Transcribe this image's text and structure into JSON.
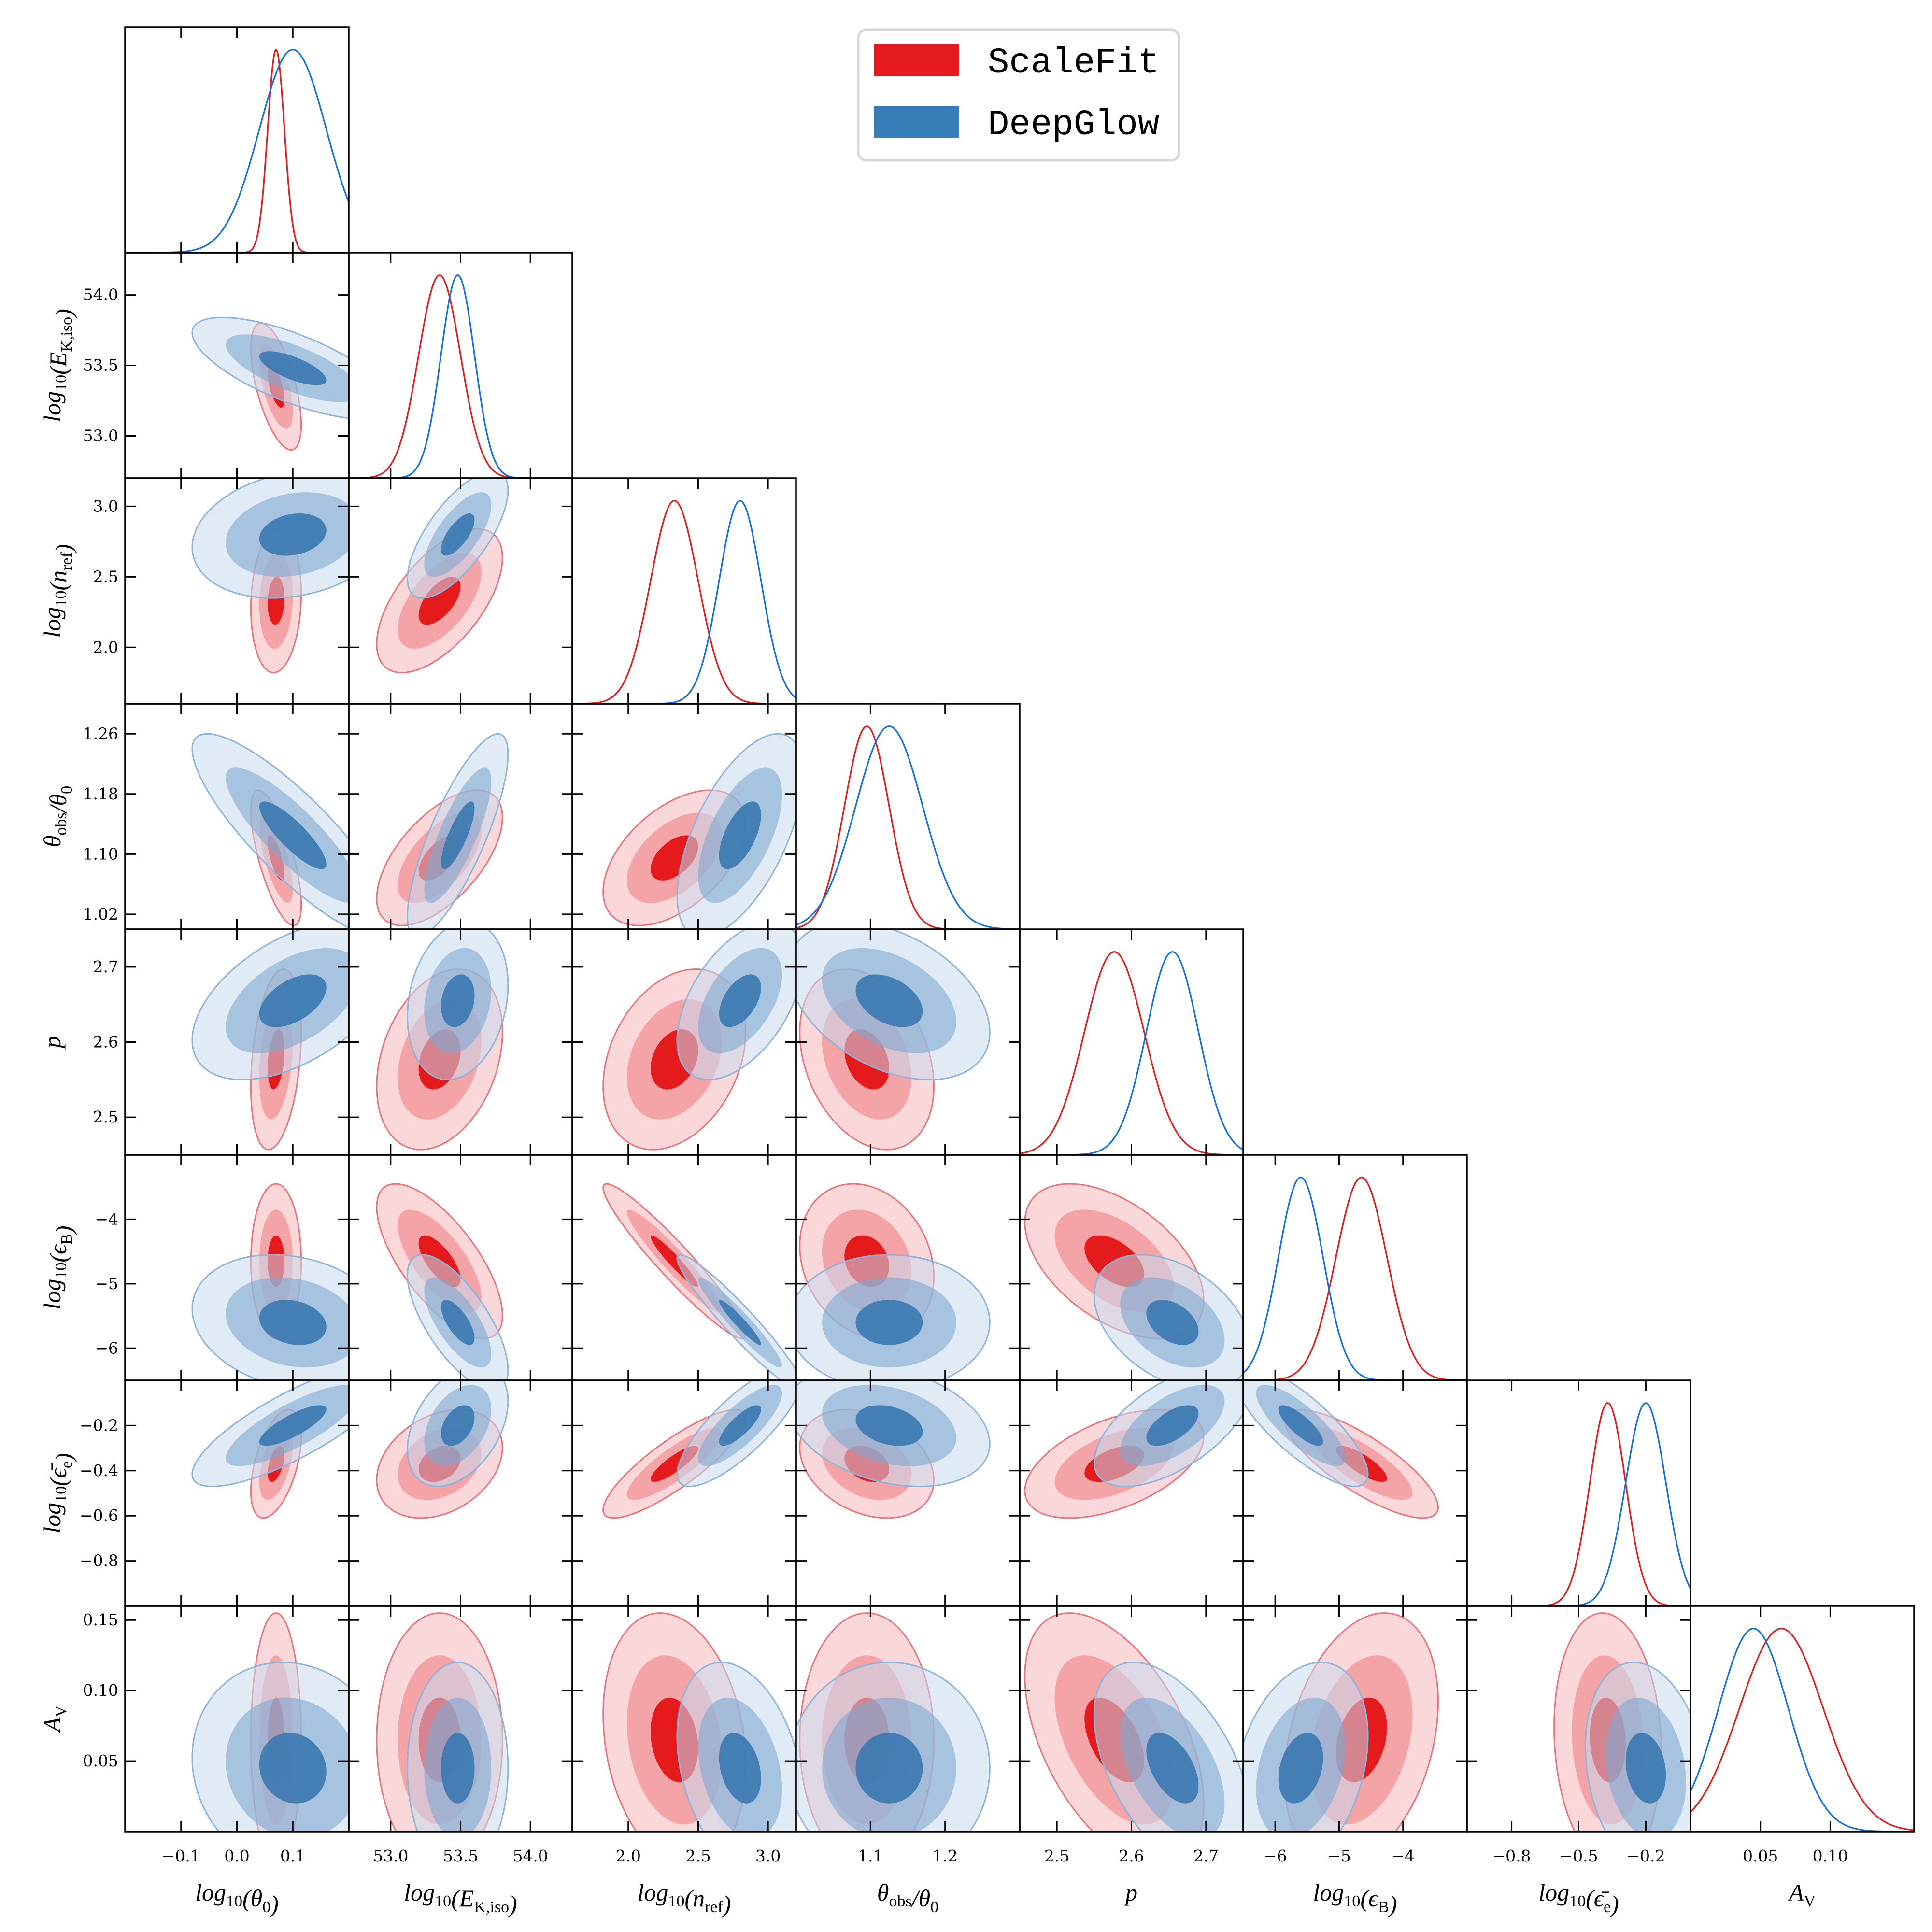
{
  "chart_data": {
    "type": "corner",
    "legend": {
      "placement": "top-center",
      "entries": [
        {
          "name": "ScaleFit",
          "color": "#e41a1c"
        },
        {
          "name": "DeepGlow",
          "color": "#377eb8"
        }
      ]
    },
    "parameters": [
      {
        "label": "log_{10}(θ_{0})",
        "range": [
          -0.2,
          0.2
        ],
        "ticks": [
          -0.1,
          0.0,
          0.1
        ],
        "tick_labels": [
          "−0.1",
          "0.0",
          "0.1"
        ]
      },
      {
        "label": "log_{10}(E_{K,iso})",
        "range": [
          52.7,
          54.3
        ],
        "ticks": [
          53.0,
          53.5,
          54.0
        ],
        "tick_labels": [
          "53.0",
          "53.5",
          "54.0"
        ]
      },
      {
        "label": "log_{10}(n_{ref})",
        "range": [
          1.6,
          3.2
        ],
        "ticks": [
          2.0,
          2.5,
          3.0
        ],
        "tick_labels": [
          "2.0",
          "2.5",
          "3.0"
        ]
      },
      {
        "label": "θ_{obs}/θ_{0}",
        "range": [
          1.0,
          1.3
        ],
        "ticks": [
          1.1,
          1.2
        ],
        "tick_labels": [
          "1.1",
          "1.2"
        ],
        "y_ticks": [
          1.02,
          1.1,
          1.18,
          1.26
        ],
        "y_tick_labels": [
          "1.02",
          "1.10",
          "1.18",
          "1.26"
        ]
      },
      {
        "label": "p",
        "range": [
          2.45,
          2.75
        ],
        "ticks": [
          2.5,
          2.6,
          2.7
        ],
        "tick_labels": [
          "2.5",
          "2.6",
          "2.7"
        ]
      },
      {
        "label": "log_{10}(ϵ_{B})",
        "range": [
          -6.5,
          -3.0
        ],
        "ticks": [
          -6,
          -5,
          -4
        ],
        "tick_labels": [
          "−6",
          "−5",
          "−4"
        ]
      },
      {
        "label": "log_{10}(ϵ̄_{e})",
        "range": [
          -1.0,
          0.0
        ],
        "ticks": [
          -0.8,
          -0.5,
          -0.2
        ],
        "tick_labels": [
          "−0.8",
          "−0.5",
          "−0.2"
        ],
        "y_ticks": [
          -0.8,
          -0.6,
          -0.4,
          -0.2
        ],
        "y_tick_labels": [
          "−0.8",
          "−0.6",
          "−0.4",
          "−0.2"
        ]
      },
      {
        "label": "A_{V}",
        "range": [
          0.0,
          0.16
        ],
        "ticks": [
          0.05,
          0.1
        ],
        "tick_labels": [
          "0.05",
          "0.10"
        ],
        "y_ticks": [
          0.05,
          0.1,
          0.15
        ],
        "y_tick_labels": [
          "0.05",
          "0.10",
          "0.15"
        ]
      }
    ],
    "series": [
      {
        "name": "ScaleFit",
        "line_color": "#e41a1c",
        "fill_colors": [
          "#e41a1c",
          "#f4a3a6",
          "#fad8da"
        ],
        "edge_color": "#e8747a",
        "mean": [
          0.07,
          53.35,
          2.33,
          1.095,
          2.577,
          -4.65,
          -0.37,
          0.065
        ],
        "sigma": [
          0.015,
          0.15,
          0.17,
          0.03,
          0.04,
          0.4,
          0.08,
          0.03
        ],
        "correlation": [
          [
            1,
            -0.6,
            0.1,
            -0.7,
            0.3,
            0.0,
            0.5,
            0.0
          ],
          [
            -0.6,
            1,
            0.6,
            0.6,
            0.3,
            -0.7,
            0.3,
            0.0
          ],
          [
            0.1,
            0.6,
            1,
            0.5,
            0.3,
            -0.95,
            0.85,
            -0.2
          ],
          [
            -0.7,
            0.6,
            0.5,
            1,
            -0.3,
            -0.2,
            -0.3,
            0.0
          ],
          [
            0.3,
            0.3,
            0.3,
            -0.3,
            1,
            -0.5,
            0.5,
            -0.5
          ],
          [
            0.0,
            -0.7,
            -0.95,
            -0.2,
            -0.5,
            1,
            -0.8,
            0.3
          ],
          [
            0.5,
            0.3,
            0.85,
            -0.3,
            0.5,
            -0.8,
            1,
            -0.1
          ],
          [
            0.0,
            0.0,
            -0.2,
            0.0,
            -0.5,
            0.3,
            -0.1,
            1
          ]
        ]
      },
      {
        "name": "DeepGlow",
        "line_color": "#1170e0",
        "fill_colors": [
          "#3a78b0",
          "#7fa8d0",
          "#c9dbee"
        ],
        "edge_color": "#8fb4d8",
        "mean": [
          0.1,
          53.48,
          2.8,
          1.125,
          2.655,
          -5.6,
          -0.2,
          0.045
        ],
        "sigma": [
          0.06,
          0.12,
          0.15,
          0.045,
          0.035,
          0.35,
          0.09,
          0.025
        ],
        "correlation": [
          [
            1,
            -0.7,
            0.2,
            -0.85,
            0.5,
            -0.2,
            0.8,
            -0.1
          ],
          [
            -0.7,
            1,
            0.7,
            0.8,
            0.2,
            -0.7,
            0.4,
            0.0
          ],
          [
            0.2,
            0.7,
            1,
            0.6,
            0.5,
            -0.95,
            0.8,
            -0.3
          ],
          [
            -0.85,
            0.8,
            0.6,
            1,
            -0.4,
            0.0,
            -0.3,
            0.0
          ],
          [
            0.5,
            0.2,
            0.5,
            -0.4,
            1,
            -0.4,
            0.6,
            -0.5
          ],
          [
            -0.2,
            -0.7,
            -0.95,
            0.0,
            -0.4,
            1,
            -0.8,
            0.3
          ],
          [
            0.8,
            0.4,
            0.8,
            -0.3,
            0.6,
            -0.8,
            1,
            -0.2
          ],
          [
            -0.1,
            0.0,
            -0.3,
            0.0,
            -0.5,
            0.3,
            -0.2,
            1
          ]
        ]
      }
    ]
  }
}
